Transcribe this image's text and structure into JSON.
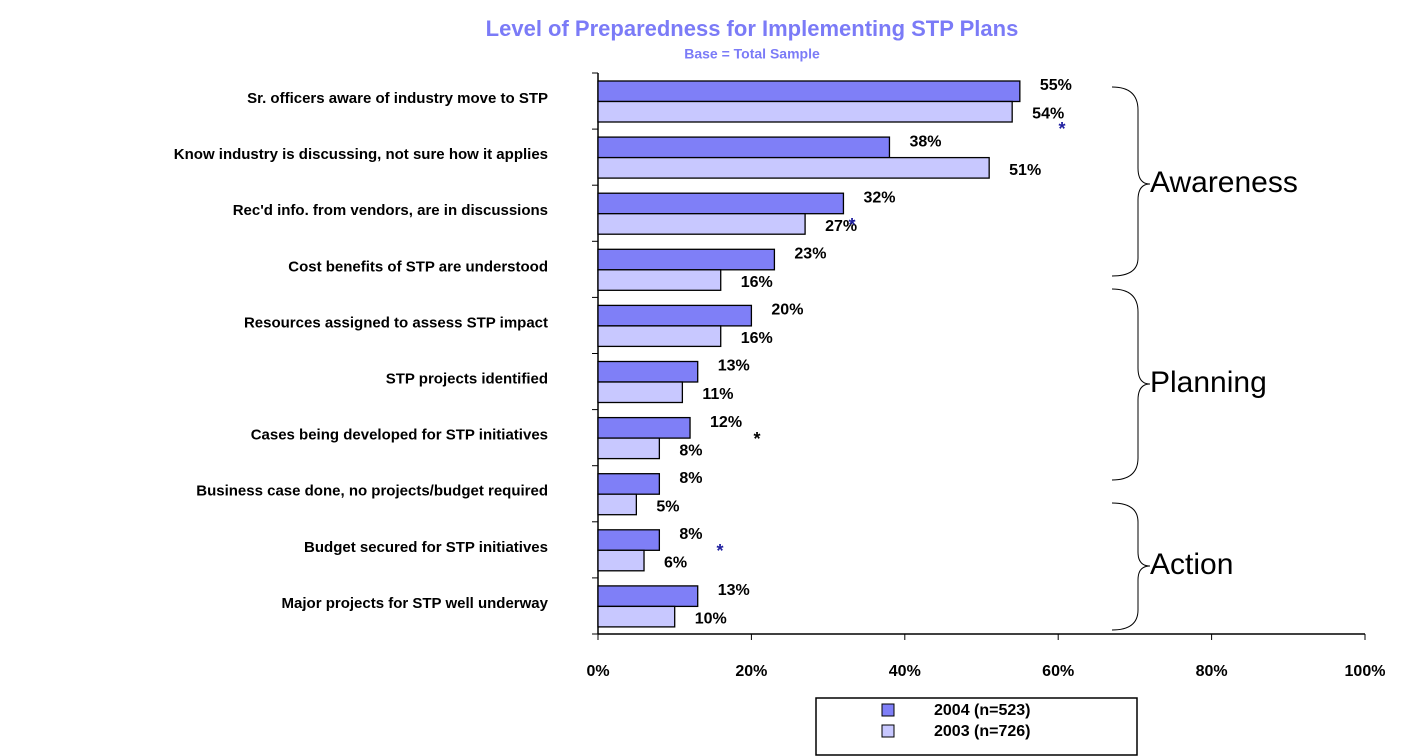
{
  "chart_data": {
    "type": "bar",
    "orientation": "horizontal",
    "title": "Level of Preparedness for Implementing STP Plans",
    "subtitle": "Base = Total Sample",
    "categories": [
      "Sr. officers aware of industry move to STP",
      "Know industry is discussing, not sure how it applies",
      "Rec'd info. from vendors, are in discussions",
      "Cost benefits of STP are understood",
      "Resources assigned to assess STP impact",
      "STP projects identified",
      "Cases being developed for STP initiatives",
      "Business case done, no projects/budget required",
      "Budget secured for STP initiatives",
      "Major projects for STP well underway"
    ],
    "series": [
      {
        "name": "2004 (n=523)",
        "color": "#7f7ff7",
        "values": [
          55,
          38,
          32,
          23,
          20,
          13,
          12,
          8,
          8,
          13
        ],
        "value_labels": [
          "55%",
          "38%",
          "32%",
          "23%",
          "20%",
          "13%",
          "12%",
          "8%",
          "8%",
          "13%"
        ]
      },
      {
        "name": "2003 (n=726)",
        "color": "#c8c8ff",
        "values": [
          54,
          51,
          27,
          16,
          16,
          11,
          8,
          5,
          6,
          10
        ],
        "value_labels": [
          "54%",
          "51%",
          "27%",
          "16%",
          "16%",
          "11%",
          "8%",
          "5%",
          "6%",
          "10%"
        ]
      }
    ],
    "xlim": [
      0,
      100
    ],
    "xticks": [
      {
        "value": 0,
        "label": "0%"
      },
      {
        "value": 20,
        "label": "20%"
      },
      {
        "value": 40,
        "label": "40%"
      },
      {
        "value": 60,
        "label": "60%"
      },
      {
        "value": 80,
        "label": "80%"
      },
      {
        "value": 100,
        "label": "100%"
      }
    ],
    "groups": [
      "Awareness",
      "Planning",
      "Action"
    ],
    "annotations": [
      "*",
      "*",
      "*",
      "*"
    ],
    "legend": "bottom"
  }
}
